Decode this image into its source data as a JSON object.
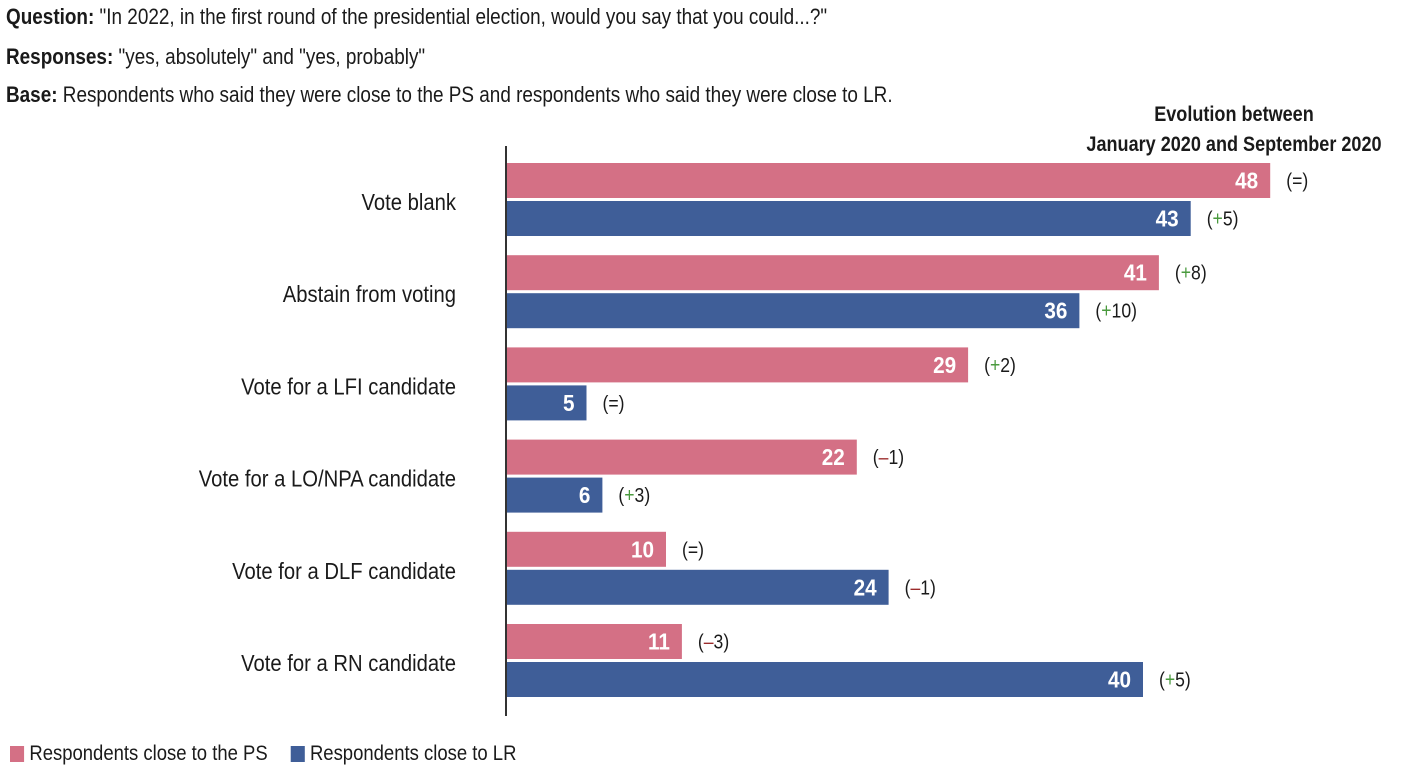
{
  "header": {
    "question_label": "Question:",
    "question_text": " \"In 2022, in the first round of the presidential election, would you say that you could...?\"",
    "responses_label": "Responses:",
    "responses_text": " \"yes, absolutely\" and \"yes, probably\"",
    "base_label": "Base:",
    "base_text": " Respondents who said they were close to the PS and respondents who said they were close to LR.",
    "evolution_line1": "Evolution between",
    "evolution_line2": "January 2020 and September 2020"
  },
  "colors": {
    "ps": "#d47085",
    "lr": "#3f5e98",
    "plus": "#4a9a3e",
    "minus": "#9b2b2b"
  },
  "chart_data": {
    "type": "bar",
    "orientation": "horizontal",
    "title": "",
    "xlabel": "",
    "ylabel": "",
    "xlim": [
      0,
      50
    ],
    "grid": false,
    "legend_position": "bottom-left",
    "categories": [
      "Vote blank",
      "Abstain from voting",
      "Vote for a LFI candidate",
      "Vote for a LO/NPA candidate",
      "Vote for a DLF candidate",
      "Vote for a RN candidate"
    ],
    "series": [
      {
        "name": "Respondents close to the PS",
        "key": "ps",
        "values": [
          48,
          41,
          29,
          22,
          10,
          11
        ],
        "evolution": [
          {
            "sign": "=",
            "num": ""
          },
          {
            "sign": "+",
            "num": "8"
          },
          {
            "sign": "+",
            "num": "2"
          },
          {
            "sign": "-",
            "num": "1"
          },
          {
            "sign": "=",
            "num": ""
          },
          {
            "sign": "-",
            "num": "3"
          }
        ]
      },
      {
        "name": "Respondents close to LR",
        "key": "lr",
        "values": [
          43,
          36,
          5,
          6,
          24,
          40
        ],
        "evolution": [
          {
            "sign": "+",
            "num": "5"
          },
          {
            "sign": "+",
            "num": "10"
          },
          {
            "sign": "=",
            "num": ""
          },
          {
            "sign": "+",
            "num": "3"
          },
          {
            "sign": "-",
            "num": "1"
          },
          {
            "sign": "+",
            "num": "5"
          }
        ]
      }
    ]
  },
  "legend": [
    {
      "label": "Respondents close to the PS",
      "key": "ps"
    },
    {
      "label": "Respondents close to LR",
      "key": "lr"
    }
  ]
}
